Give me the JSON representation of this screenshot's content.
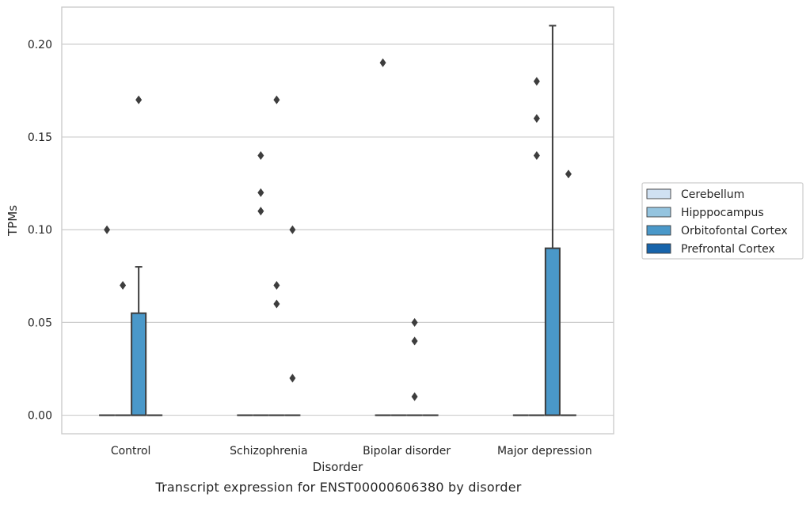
{
  "caption": "Transcript expression for ENST00000606380 by disorder",
  "chart_data": {
    "type": "box",
    "title": "",
    "xlabel": "Disorder",
    "ylabel": "TPMs",
    "categories": [
      "Control",
      "Schizophrenia",
      "Bipolar disorder",
      "Major depression"
    ],
    "ylim": [
      -0.01,
      0.22
    ],
    "yticks": [
      0.0,
      0.05,
      0.1,
      0.15,
      0.2
    ],
    "ytick_labels": [
      "0.00",
      "0.05",
      "0.10",
      "0.15",
      "0.20"
    ],
    "grid": true,
    "legend_position": "right",
    "series": [
      {
        "name": "Cerebellum",
        "color": "#d0e1f2",
        "boxes": [
          {
            "category": "Control",
            "q1": 0.0,
            "median": 0.0,
            "q3": 0.0,
            "whislo": 0.0,
            "whishi": 0.0,
            "fliers": [
              0.1
            ]
          },
          {
            "category": "Schizophrenia",
            "q1": 0.0,
            "median": 0.0,
            "q3": 0.0,
            "whislo": 0.0,
            "whishi": 0.0,
            "fliers": []
          },
          {
            "category": "Bipolar disorder",
            "q1": 0.0,
            "median": 0.0,
            "q3": 0.0,
            "whislo": 0.0,
            "whishi": 0.0,
            "fliers": [
              0.19
            ]
          },
          {
            "category": "Major depression",
            "q1": 0.0,
            "median": 0.0,
            "q3": 0.0,
            "whislo": 0.0,
            "whishi": 0.0,
            "fliers": []
          }
        ]
      },
      {
        "name": "Hipppocampus",
        "color": "#94c4df",
        "boxes": [
          {
            "category": "Control",
            "q1": 0.0,
            "median": 0.0,
            "q3": 0.0,
            "whislo": 0.0,
            "whishi": 0.0,
            "fliers": [
              0.07
            ]
          },
          {
            "category": "Schizophrenia",
            "q1": 0.0,
            "median": 0.0,
            "q3": 0.0,
            "whislo": 0.0,
            "whishi": 0.0,
            "fliers": [
              0.14,
              0.12,
              0.11
            ]
          },
          {
            "category": "Bipolar disorder",
            "q1": 0.0,
            "median": 0.0,
            "q3": 0.0,
            "whislo": 0.0,
            "whishi": 0.0,
            "fliers": []
          },
          {
            "category": "Major depression",
            "q1": 0.0,
            "median": 0.0,
            "q3": 0.0,
            "whislo": 0.0,
            "whishi": 0.0,
            "fliers": [
              0.18,
              0.16,
              0.14
            ]
          }
        ]
      },
      {
        "name": "Orbitofontal Cortex",
        "color": "#4a98c9",
        "boxes": [
          {
            "category": "Control",
            "q1": 0.0,
            "median": 0.0,
            "q3": 0.055,
            "whislo": 0.0,
            "whishi": 0.08,
            "fliers": [
              0.17
            ]
          },
          {
            "category": "Schizophrenia",
            "q1": 0.0,
            "median": 0.0,
            "q3": 0.0,
            "whislo": 0.0,
            "whishi": 0.0,
            "fliers": [
              0.17,
              0.07,
              0.06
            ]
          },
          {
            "category": "Bipolar disorder",
            "q1": 0.0,
            "median": 0.0,
            "q3": 0.0,
            "whislo": 0.0,
            "whishi": 0.0,
            "fliers": [
              0.05,
              0.04,
              0.01
            ]
          },
          {
            "category": "Major depression",
            "q1": 0.0,
            "median": 0.0,
            "q3": 0.09,
            "whislo": 0.0,
            "whishi": 0.21,
            "fliers": []
          }
        ]
      },
      {
        "name": "Prefrontal Cortex",
        "color": "#1764ab",
        "boxes": [
          {
            "category": "Control",
            "q1": 0.0,
            "median": 0.0,
            "q3": 0.0,
            "whislo": 0.0,
            "whishi": 0.0,
            "fliers": []
          },
          {
            "category": "Schizophrenia",
            "q1": 0.0,
            "median": 0.0,
            "q3": 0.0,
            "whislo": 0.0,
            "whishi": 0.0,
            "fliers": [
              0.1,
              0.02
            ]
          },
          {
            "category": "Bipolar disorder",
            "q1": 0.0,
            "median": 0.0,
            "q3": 0.0,
            "whislo": 0.0,
            "whishi": 0.0,
            "fliers": []
          },
          {
            "category": "Major depression",
            "q1": 0.0,
            "median": 0.0,
            "q3": 0.0,
            "whislo": 0.0,
            "whishi": 0.0,
            "fliers": [
              0.13
            ]
          }
        ]
      }
    ]
  }
}
